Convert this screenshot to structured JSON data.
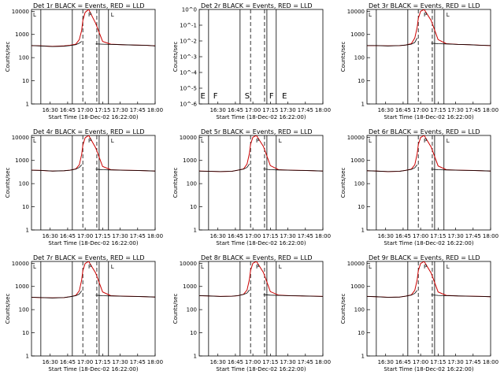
{
  "figure": {
    "background": "#ffffff",
    "ink_color": "#000000",
    "model_color": "#cc0000"
  },
  "time_ticks": [
    "16:30",
    "16:45",
    "17:00",
    "17:15",
    "17:30",
    "17:45",
    "18:00"
  ],
  "xlabel": "Start Time (18-Dec-02 16:22:00)",
  "ylabel": "Counts/sec",
  "log_ticks": [
    "1",
    "10",
    "100",
    "1000",
    "10000"
  ],
  "empty_ticks": [
    "10^0",
    "10^-1",
    "10^-2",
    "10^-3",
    "10^-4",
    "10^-5",
    "10^-6"
  ],
  "interval_markers": [
    "E",
    "F",
    "S",
    "F",
    "E"
  ],
  "peak_marker": "P",
  "chart_data": [
    {
      "type": "line",
      "title": "Det 1r BLACK = Events, RED = LLD",
      "empty": false,
      "xlim_min": [
        -8,
        98
      ],
      "ylim": [
        1,
        12000
      ],
      "series": [
        {
          "name": "Events",
          "color": "#000000"
        },
        {
          "name": "LLD",
          "color": "#cc0000"
        }
      ],
      "x_minutes": [
        -8,
        0,
        10,
        20,
        25,
        30,
        33,
        35,
        36,
        38,
        41,
        47,
        53,
        60,
        70,
        80,
        90,
        98
      ],
      "y_black": [
        330,
        320,
        300,
        310,
        330,
        360,
        420,
        500,
        null,
        null,
        null,
        390,
        380,
        370,
        360,
        350,
        340,
        320
      ],
      "y_red": [
        330,
        320,
        305,
        320,
        340,
        380,
        600,
        1500,
        4000,
        9000,
        12000,
        3000,
        500,
        380,
        360,
        350,
        340,
        320
      ],
      "peak_minute": 42
    },
    {
      "type": "line",
      "title": "Det 2r BLACK = Events, RED = LLD",
      "empty": true,
      "xlim_min": [
        -8,
        98
      ],
      "ylim": [
        1e-06,
        1
      ],
      "series": [],
      "x_minutes": [],
      "y_black": [],
      "y_red": [],
      "peak_minute": null
    },
    {
      "type": "line",
      "title": "Det 3r BLACK = Events, RED = LLD",
      "empty": false,
      "xlim_min": [
        -8,
        98
      ],
      "ylim": [
        1,
        12000
      ],
      "series": [
        {
          "name": "Events",
          "color": "#000000"
        },
        {
          "name": "LLD",
          "color": "#cc0000"
        }
      ],
      "x_minutes": [
        -8,
        0,
        10,
        20,
        25,
        30,
        33,
        35,
        36,
        38,
        41,
        47,
        53,
        60,
        70,
        80,
        90,
        98
      ],
      "y_black": [
        330,
        330,
        320,
        330,
        350,
        380,
        450,
        700,
        null,
        null,
        null,
        420,
        400,
        390,
        370,
        360,
        340,
        330
      ],
      "y_red": [
        330,
        330,
        320,
        330,
        350,
        400,
        700,
        2000,
        5000,
        10000,
        12000,
        4000,
        600,
        400,
        370,
        360,
        340,
        330
      ],
      "peak_minute": 42
    },
    {
      "type": "line",
      "title": "Det 4r BLACK = Events, RED = LLD",
      "empty": false,
      "xlim_min": [
        -8,
        98
      ],
      "ylim": [
        1,
        12000
      ],
      "series": [
        {
          "name": "Events",
          "color": "#000000"
        },
        {
          "name": "LLD",
          "color": "#cc0000"
        }
      ],
      "x_minutes": [
        -8,
        0,
        10,
        20,
        25,
        30,
        33,
        35,
        36,
        38,
        41,
        47,
        53,
        60,
        70,
        80,
        90,
        98
      ],
      "y_black": [
        380,
        370,
        350,
        360,
        380,
        420,
        500,
        650,
        null,
        null,
        null,
        420,
        400,
        390,
        380,
        370,
        360,
        350
      ],
      "y_red": [
        380,
        370,
        350,
        360,
        380,
        430,
        650,
        1800,
        4500,
        9500,
        12000,
        3500,
        550,
        400,
        380,
        370,
        360,
        350
      ],
      "peak_minute": 42
    },
    {
      "type": "line",
      "title": "Det 5r BLACK = Events, RED = LLD",
      "empty": false,
      "xlim_min": [
        -8,
        98
      ],
      "ylim": [
        1,
        12000
      ],
      "series": [
        {
          "name": "Events",
          "color": "#000000"
        },
        {
          "name": "LLD",
          "color": "#cc0000"
        }
      ],
      "x_minutes": [
        -8,
        0,
        10,
        20,
        25,
        30,
        33,
        35,
        36,
        38,
        41,
        47,
        53,
        60,
        70,
        80,
        90,
        98
      ],
      "y_black": [
        350,
        340,
        330,
        340,
        380,
        420,
        500,
        700,
        null,
        null,
        null,
        430,
        400,
        390,
        380,
        370,
        360,
        350
      ],
      "y_red": [
        350,
        340,
        330,
        340,
        380,
        430,
        700,
        2000,
        5000,
        10000,
        12000,
        4000,
        600,
        400,
        380,
        370,
        360,
        350
      ],
      "peak_minute": 42
    },
    {
      "type": "line",
      "title": "Det 6r BLACK = Events, RED = LLD",
      "empty": false,
      "xlim_min": [
        -8,
        98
      ],
      "ylim": [
        1,
        12000
      ],
      "series": [
        {
          "name": "Events",
          "color": "#000000"
        },
        {
          "name": "LLD",
          "color": "#cc0000"
        }
      ],
      "x_minutes": [
        -8,
        0,
        10,
        20,
        25,
        30,
        33,
        35,
        36,
        38,
        41,
        47,
        53,
        60,
        70,
        80,
        90,
        98
      ],
      "y_black": [
        360,
        350,
        330,
        340,
        370,
        410,
        480,
        650,
        null,
        null,
        null,
        420,
        400,
        390,
        380,
        370,
        360,
        350
      ],
      "y_red": [
        360,
        350,
        330,
        340,
        370,
        420,
        650,
        1900,
        4800,
        9800,
        12000,
        3800,
        580,
        400,
        380,
        370,
        360,
        350
      ],
      "peak_minute": 42
    },
    {
      "type": "line",
      "title": "Det 7r BLACK = Events, RED = LLD",
      "empty": false,
      "xlim_min": [
        -8,
        98
      ],
      "ylim": [
        1,
        12000
      ],
      "series": [
        {
          "name": "Events",
          "color": "#000000"
        },
        {
          "name": "LLD",
          "color": "#cc0000"
        }
      ],
      "x_minutes": [
        -8,
        0,
        10,
        20,
        25,
        30,
        33,
        35,
        36,
        38,
        41,
        47,
        53,
        60,
        70,
        80,
        90,
        98
      ],
      "y_black": [
        340,
        330,
        320,
        330,
        360,
        400,
        470,
        650,
        null,
        null,
        null,
        420,
        400,
        390,
        380,
        370,
        360,
        350
      ],
      "y_red": [
        340,
        330,
        320,
        330,
        360,
        410,
        650,
        1900,
        4800,
        9800,
        12000,
        3800,
        580,
        400,
        380,
        370,
        360,
        350
      ],
      "peak_minute": 42
    },
    {
      "type": "line",
      "title": "Det 8r BLACK = Events, RED = LLD",
      "empty": false,
      "xlim_min": [
        -8,
        98
      ],
      "ylim": [
        1,
        12000
      ],
      "series": [
        {
          "name": "Events",
          "color": "#000000"
        },
        {
          "name": "LLD",
          "color": "#cc0000"
        }
      ],
      "x_minutes": [
        -8,
        0,
        10,
        20,
        25,
        30,
        33,
        35,
        36,
        38,
        41,
        47,
        53,
        60,
        70,
        80,
        90,
        98
      ],
      "y_black": [
        400,
        390,
        370,
        380,
        400,
        450,
        520,
        700,
        null,
        null,
        null,
        440,
        420,
        410,
        400,
        390,
        380,
        370
      ],
      "y_red": [
        400,
        390,
        370,
        380,
        400,
        460,
        700,
        2000,
        5000,
        10000,
        12000,
        4000,
        600,
        420,
        400,
        390,
        380,
        370
      ],
      "peak_minute": 42
    },
    {
      "type": "line",
      "title": "Det 9r BLACK = Events, RED = LLD",
      "empty": false,
      "xlim_min": [
        -8,
        98
      ],
      "ylim": [
        1,
        12000
      ],
      "series": [
        {
          "name": "Events",
          "color": "#000000"
        },
        {
          "name": "LLD",
          "color": "#cc0000"
        }
      ],
      "x_minutes": [
        -8,
        0,
        10,
        20,
        25,
        30,
        33,
        35,
        36,
        38,
        41,
        47,
        53,
        60,
        70,
        80,
        90,
        98
      ],
      "y_black": [
        370,
        360,
        340,
        350,
        380,
        420,
        500,
        680,
        null,
        null,
        null,
        430,
        410,
        400,
        390,
        380,
        370,
        360
      ],
      "y_red": [
        370,
        360,
        340,
        350,
        380,
        430,
        680,
        1900,
        4800,
        9800,
        12000,
        3800,
        580,
        410,
        390,
        380,
        370,
        360
      ],
      "peak_minute": 42
    }
  ],
  "vertical_lines_minutes": {
    "solid": [
      0,
      27,
      50,
      58
    ],
    "dashed": [
      36,
      48
    ]
  }
}
